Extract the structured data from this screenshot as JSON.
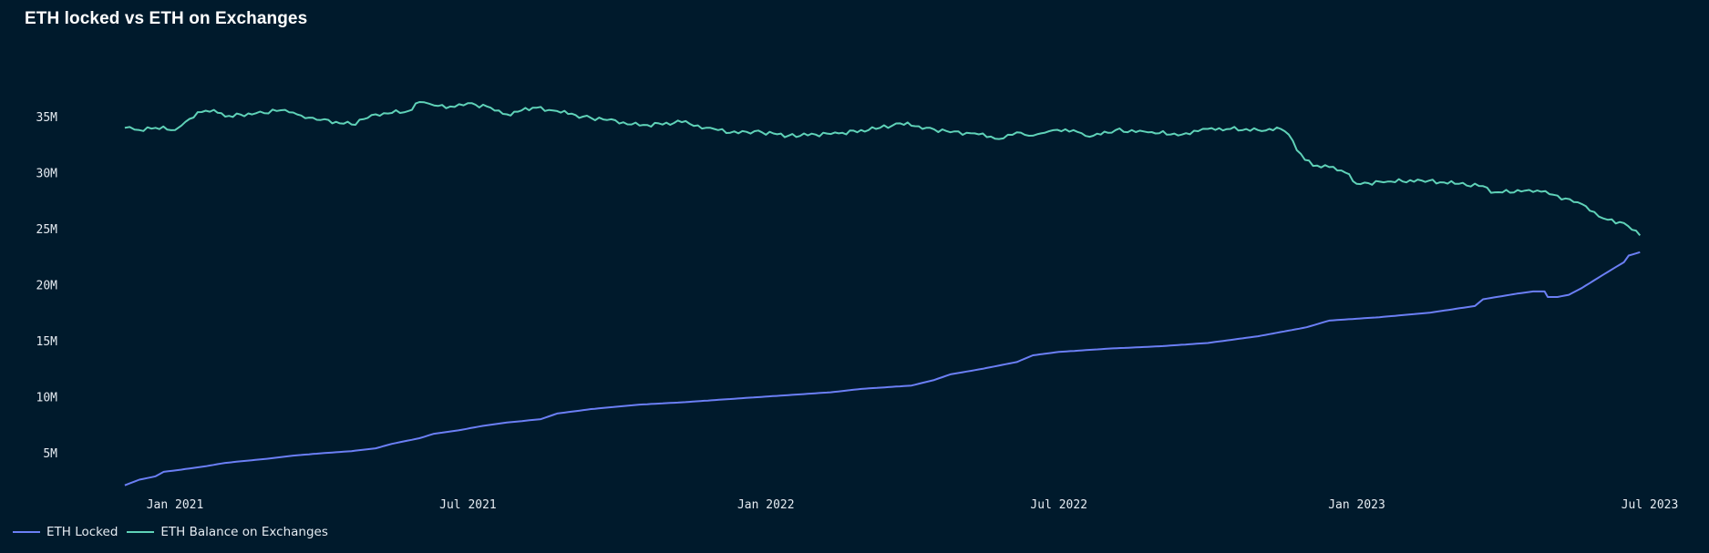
{
  "chart_data": {
    "type": "line",
    "title": "ETH locked vs ETH on Exchanges",
    "xlabel": "",
    "ylabel": "",
    "x_ticks": [
      {
        "label": "Jan 2021",
        "date": "2021-01-01"
      },
      {
        "label": "Jul 2021",
        "date": "2021-07-01"
      },
      {
        "label": "Jan 2022",
        "date": "2022-01-01"
      },
      {
        "label": "Jul 2022",
        "date": "2022-07-01"
      },
      {
        "label": "Jan 2023",
        "date": "2023-01-01"
      },
      {
        "label": "Jul 2023",
        "date": "2023-07-01"
      }
    ],
    "y_ticks": [
      {
        "label": "5M",
        "value": 5000000
      },
      {
        "label": "10M",
        "value": 10000000
      },
      {
        "label": "15M",
        "value": 15000000
      },
      {
        "label": "20M",
        "value": 20000000
      },
      {
        "label": "25M",
        "value": 25000000
      },
      {
        "label": "30M",
        "value": 30000000
      },
      {
        "label": "35M",
        "value": 35000000
      }
    ],
    "xlim": [
      "2020-12-01",
      "2023-07-15"
    ],
    "ylim": [
      0,
      40000000
    ],
    "grid": false,
    "legend_position": "bottom-left",
    "series": [
      {
        "name": "ETH Locked",
        "color": "#6b7ff5",
        "points": [
          [
            "2020-12-01",
            2100000
          ],
          [
            "2020-12-10",
            2600000
          ],
          [
            "2020-12-20",
            2900000
          ],
          [
            "2020-12-25",
            3300000
          ],
          [
            "2021-01-05",
            3500000
          ],
          [
            "2021-01-20",
            3800000
          ],
          [
            "2021-02-01",
            4100000
          ],
          [
            "2021-02-15",
            4300000
          ],
          [
            "2021-03-01",
            4500000
          ],
          [
            "2021-03-15",
            4750000
          ],
          [
            "2021-04-01",
            4950000
          ],
          [
            "2021-04-20",
            5150000
          ],
          [
            "2021-05-05",
            5400000
          ],
          [
            "2021-05-15",
            5800000
          ],
          [
            "2021-06-01",
            6300000
          ],
          [
            "2021-06-10",
            6700000
          ],
          [
            "2021-06-25",
            7000000
          ],
          [
            "2021-07-10",
            7400000
          ],
          [
            "2021-07-25",
            7700000
          ],
          [
            "2021-08-15",
            8000000
          ],
          [
            "2021-08-25",
            8500000
          ],
          [
            "2021-09-15",
            8900000
          ],
          [
            "2021-10-15",
            9300000
          ],
          [
            "2021-11-10",
            9500000
          ],
          [
            "2021-12-10",
            9800000
          ],
          [
            "2022-01-10",
            10100000
          ],
          [
            "2022-02-10",
            10400000
          ],
          [
            "2022-03-01",
            10700000
          ],
          [
            "2022-04-01",
            11000000
          ],
          [
            "2022-04-15",
            11500000
          ],
          [
            "2022-04-25",
            12000000
          ],
          [
            "2022-05-15",
            12500000
          ],
          [
            "2022-06-05",
            13100000
          ],
          [
            "2022-06-15",
            13700000
          ],
          [
            "2022-07-01",
            14000000
          ],
          [
            "2022-08-01",
            14300000
          ],
          [
            "2022-09-01",
            14500000
          ],
          [
            "2022-10-01",
            14800000
          ],
          [
            "2022-11-01",
            15400000
          ],
          [
            "2022-12-01",
            16200000
          ],
          [
            "2022-12-15",
            16800000
          ],
          [
            "2023-01-15",
            17100000
          ],
          [
            "2023-02-15",
            17500000
          ],
          [
            "2023-03-15",
            18100000
          ],
          [
            "2023-03-20",
            18700000
          ],
          [
            "2023-04-10",
            19200000
          ],
          [
            "2023-04-20",
            19400000
          ],
          [
            "2023-04-27",
            19400000
          ],
          [
            "2023-04-29",
            18900000
          ],
          [
            "2023-05-05",
            18900000
          ],
          [
            "2023-05-12",
            19100000
          ],
          [
            "2023-05-20",
            19700000
          ],
          [
            "2023-05-30",
            20600000
          ],
          [
            "2023-06-08",
            21400000
          ],
          [
            "2023-06-15",
            22000000
          ],
          [
            "2023-06-18",
            22600000
          ],
          [
            "2023-06-25",
            22900000
          ]
        ]
      },
      {
        "name": "ETH Balance on Exchanges",
        "color": "#5fd2b8",
        "points": [
          [
            "2020-12-01",
            34000000
          ],
          [
            "2020-12-10",
            33800000
          ],
          [
            "2020-12-20",
            34000000
          ],
          [
            "2021-01-01",
            33800000
          ],
          [
            "2021-01-05",
            34200000
          ],
          [
            "2021-01-15",
            35400000
          ],
          [
            "2021-01-25",
            35600000
          ],
          [
            "2021-02-01",
            35000000
          ],
          [
            "2021-02-20",
            35300000
          ],
          [
            "2021-03-10",
            35600000
          ],
          [
            "2021-03-20",
            35100000
          ],
          [
            "2021-04-01",
            34700000
          ],
          [
            "2021-04-20",
            34300000
          ],
          [
            "2021-05-05",
            35200000
          ],
          [
            "2021-05-25",
            35500000
          ],
          [
            "2021-06-01",
            36300000
          ],
          [
            "2021-06-10",
            36000000
          ],
          [
            "2021-06-20",
            35900000
          ],
          [
            "2021-07-01",
            36200000
          ],
          [
            "2021-07-15",
            35800000
          ],
          [
            "2021-07-25",
            35200000
          ],
          [
            "2021-08-10",
            35800000
          ],
          [
            "2021-08-25",
            35500000
          ],
          [
            "2021-09-10",
            35000000
          ],
          [
            "2021-09-25",
            34700000
          ],
          [
            "2021-10-15",
            34200000
          ],
          [
            "2021-11-10",
            34500000
          ],
          [
            "2021-11-25",
            34000000
          ],
          [
            "2021-12-15",
            33500000
          ],
          [
            "2021-12-25",
            33700000
          ],
          [
            "2022-01-15",
            33300000
          ],
          [
            "2022-02-15",
            33500000
          ],
          [
            "2022-03-10",
            33900000
          ],
          [
            "2022-03-25",
            34400000
          ],
          [
            "2022-04-10",
            34000000
          ],
          [
            "2022-04-25",
            33600000
          ],
          [
            "2022-05-10",
            33500000
          ],
          [
            "2022-05-25",
            33000000
          ],
          [
            "2022-06-05",
            33600000
          ],
          [
            "2022-06-15",
            33300000
          ],
          [
            "2022-06-25",
            33700000
          ],
          [
            "2022-07-10",
            33800000
          ],
          [
            "2022-07-20",
            33200000
          ],
          [
            "2022-08-05",
            33800000
          ],
          [
            "2022-08-25",
            33600000
          ],
          [
            "2022-09-15",
            33400000
          ],
          [
            "2022-09-25",
            33700000
          ],
          [
            "2022-10-01",
            33900000
          ],
          [
            "2022-10-15",
            33900000
          ],
          [
            "2022-11-01",
            33800000
          ],
          [
            "2022-11-15",
            33900000
          ],
          [
            "2022-11-20",
            33400000
          ],
          [
            "2022-11-25",
            32000000
          ],
          [
            "2022-12-05",
            30600000
          ],
          [
            "2022-12-15",
            30500000
          ],
          [
            "2022-12-25",
            30000000
          ],
          [
            "2023-01-01",
            29000000
          ],
          [
            "2023-01-20",
            29200000
          ],
          [
            "2023-02-10",
            29300000
          ],
          [
            "2023-03-05",
            29000000
          ],
          [
            "2023-03-20",
            28800000
          ],
          [
            "2023-03-25",
            28200000
          ],
          [
            "2023-04-15",
            28400000
          ],
          [
            "2023-04-25",
            28300000
          ],
          [
            "2023-05-10",
            27700000
          ],
          [
            "2023-05-20",
            27200000
          ],
          [
            "2023-05-25",
            26600000
          ],
          [
            "2023-06-05",
            25800000
          ],
          [
            "2023-06-15",
            25500000
          ],
          [
            "2023-06-20",
            24900000
          ],
          [
            "2023-06-25",
            24400000
          ]
        ]
      }
    ]
  }
}
